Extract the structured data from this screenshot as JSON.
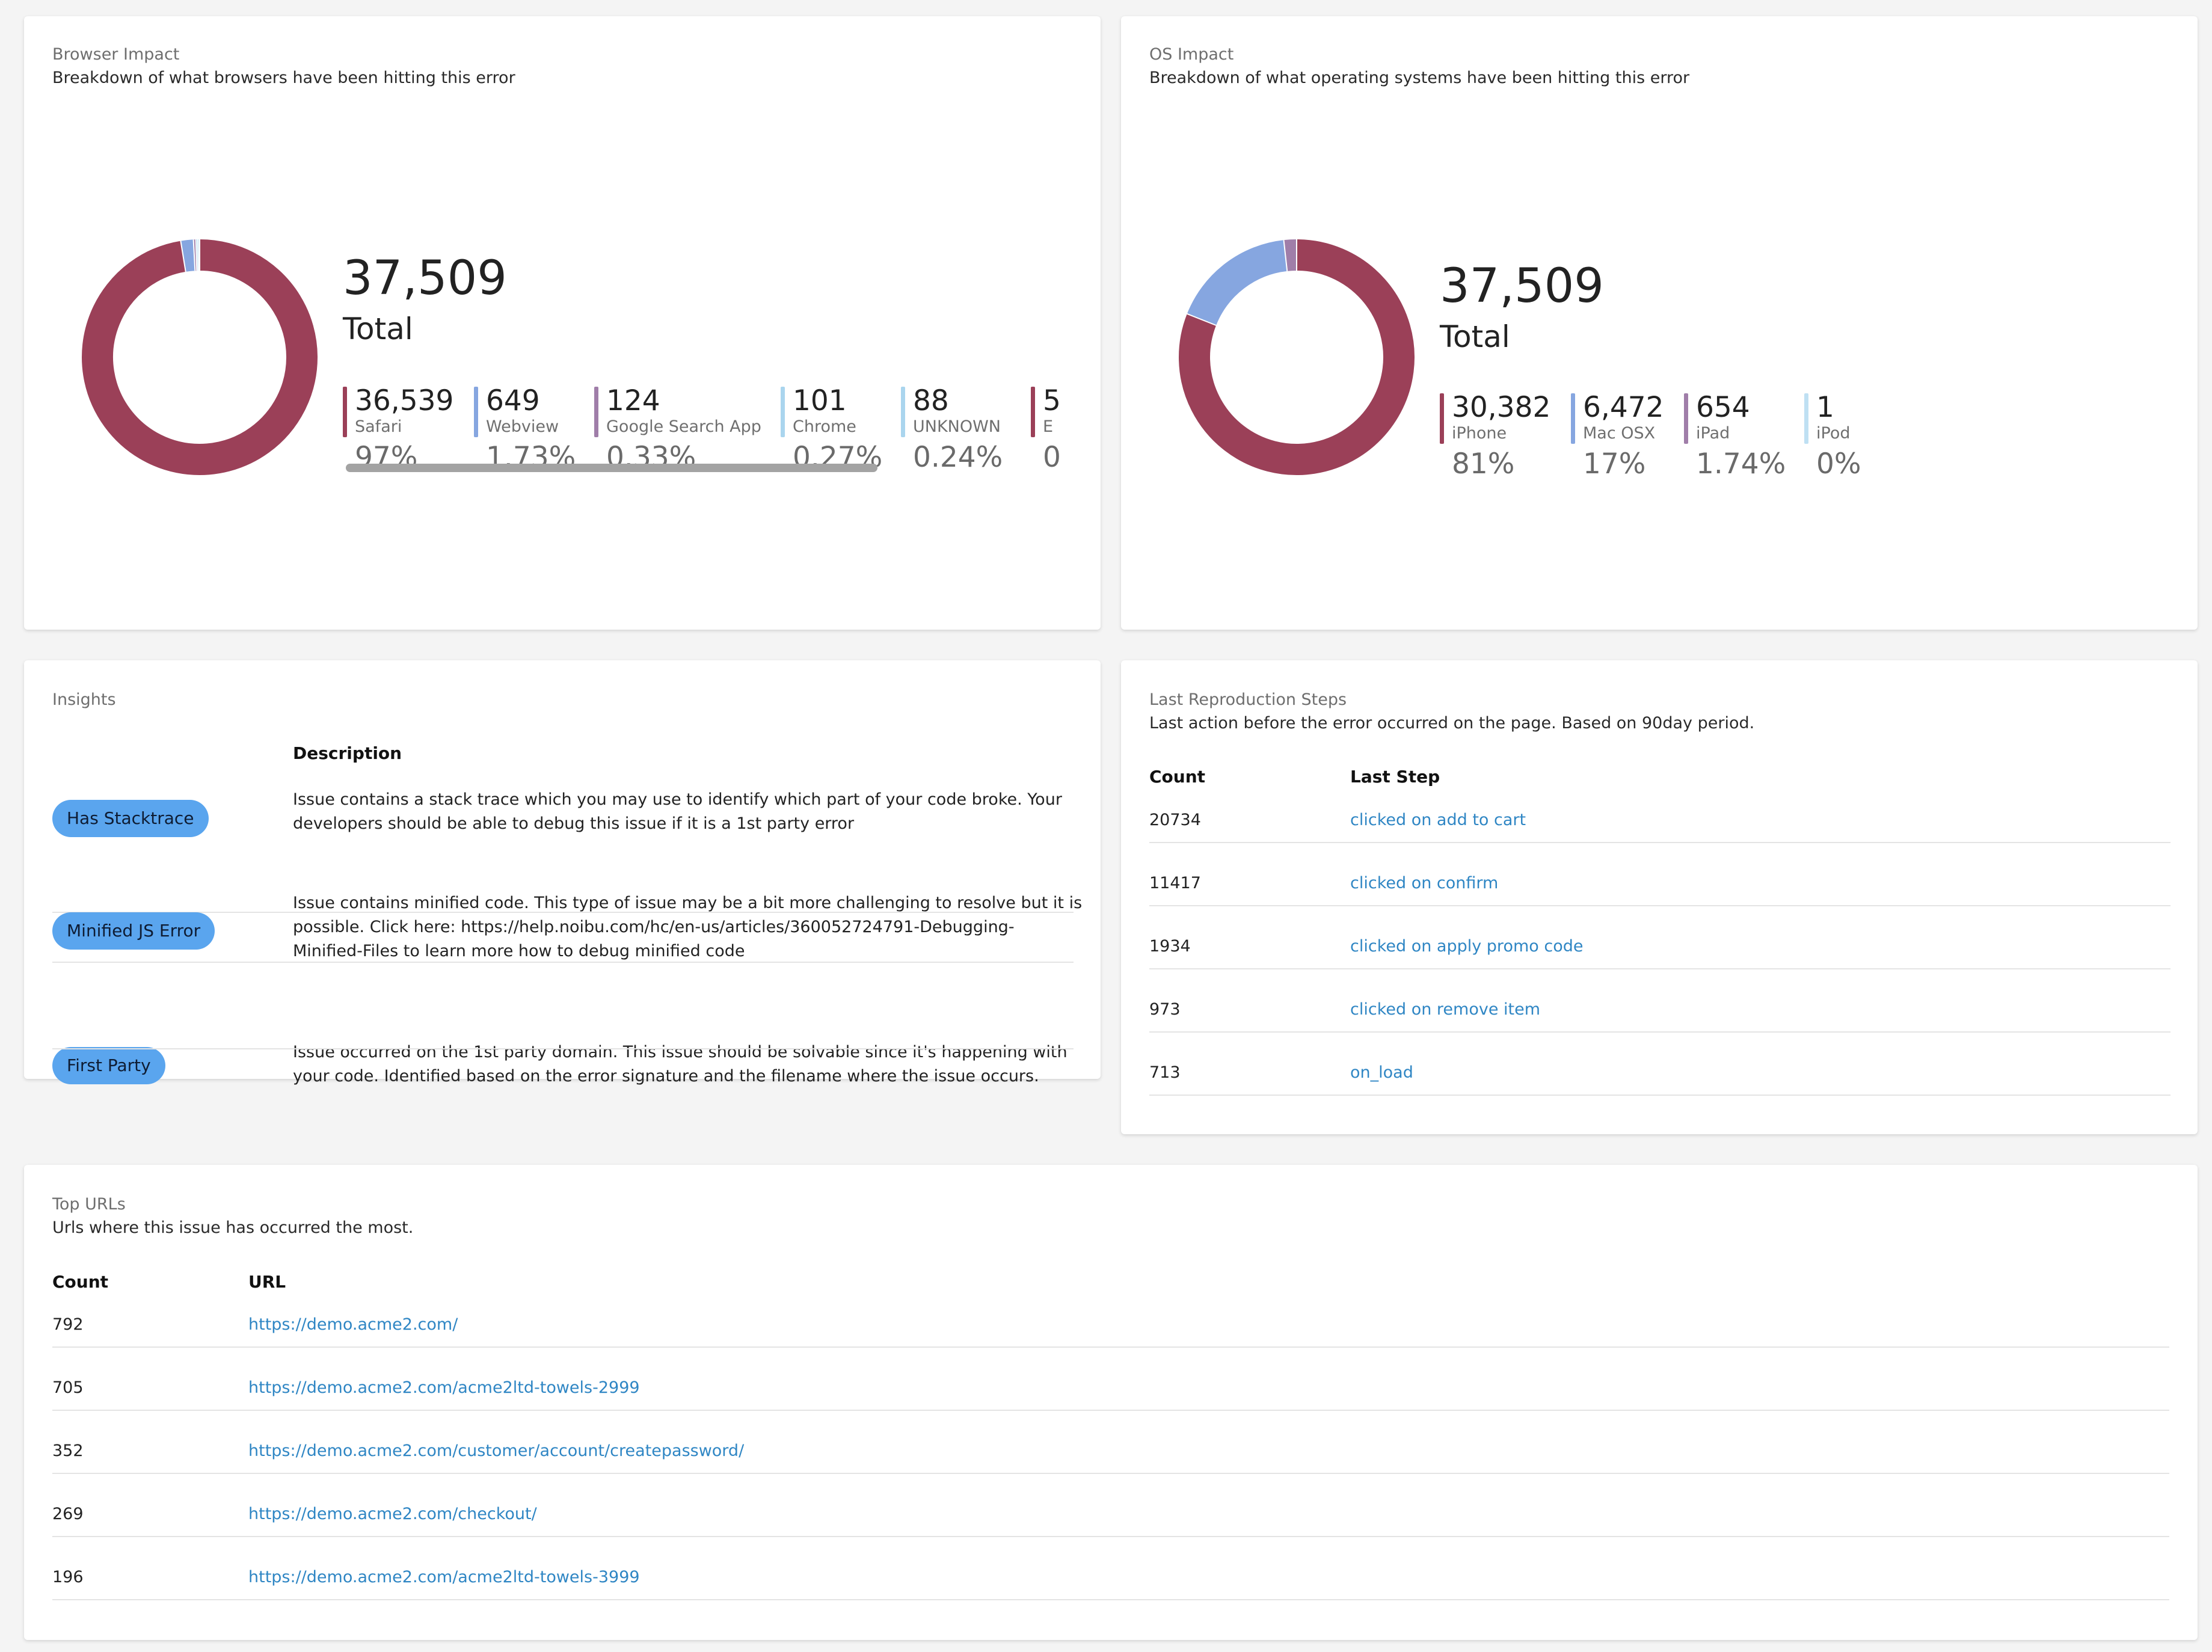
{
  "colors": {
    "maroon": "#9b4058",
    "blue": "#86a6e0",
    "purple": "#a07ea9",
    "sky": "#aad5ee",
    "ipod": "#bfe0f3",
    "link": "#2f86c4",
    "pill": "#5aa5ee"
  },
  "browser": {
    "title": "Browser Impact",
    "subtitle": "Breakdown of what browsers have been hitting this error",
    "total": "37,509",
    "total_label": "Total",
    "items": [
      {
        "count": "36,539",
        "name": "Safari",
        "pct": "97%",
        "value": 36539,
        "color": "#9b4058"
      },
      {
        "count": "649",
        "name": "Webview",
        "pct": "1.73%",
        "value": 649,
        "color": "#86a6e0"
      },
      {
        "count": "124",
        "name": "Google Search App",
        "pct": "0.33%",
        "value": 124,
        "color": "#a07ea9"
      },
      {
        "count": "101",
        "name": "Chrome",
        "pct": "0.27%",
        "value": 101,
        "color": "#aad5ee"
      },
      {
        "count": "88",
        "name": "UNKNOWN",
        "pct": "0.24%",
        "value": 88,
        "color": "#aad5ee"
      },
      {
        "count": "5",
        "name": "E",
        "pct": "0",
        "value": 5,
        "color": "#9b4058"
      }
    ]
  },
  "os": {
    "title": "OS Impact",
    "subtitle": "Breakdown of what operating systems have been hitting this error",
    "total": "37,509",
    "total_label": "Total",
    "items": [
      {
        "count": "30,382",
        "name": "iPhone",
        "pct": "81%",
        "value": 30382,
        "color": "#9b4058"
      },
      {
        "count": "6,472",
        "name": "Mac OSX",
        "pct": "17%",
        "value": 6472,
        "color": "#86a6e0"
      },
      {
        "count": "654",
        "name": "iPad",
        "pct": "1.74%",
        "value": 654,
        "color": "#a07ea9"
      },
      {
        "count": "1",
        "name": "iPod",
        "pct": "0%",
        "value": 1,
        "color": "#bfe0f3"
      }
    ]
  },
  "insights": {
    "title": "Insights",
    "desc_header": "Description",
    "rows": [
      {
        "badge": "Has Stacktrace",
        "lines": [
          "Issue contains a stack trace which you may use to identify which part of your code broke. Your",
          "developers should be able to debug this issue if it is a 1st party error"
        ]
      },
      {
        "badge": "Minified JS Error",
        "lines": [
          "Issue contains minified code. This type of issue may be a bit more challenging to resolve but it is",
          "possible. Click here: https://help.noibu.com/hc/en-us/articles/360052724791-Debugging-",
          "Minified-Files to learn more how to debug minified code"
        ]
      },
      {
        "badge": "First Party",
        "lines": [
          "Issue occurred on the 1st party domain. This issue should be solvable since it's happening with",
          "your code. Identified based on the error signature and the filename where the issue occurs."
        ]
      }
    ]
  },
  "repro": {
    "title": "Last Reproduction Steps",
    "subtitle": "Last action before the error occurred on the page. Based on 90day period.",
    "col_count": "Count",
    "col_step": "Last Step",
    "rows": [
      {
        "count": "20734",
        "step": "clicked on add to cart"
      },
      {
        "count": "11417",
        "step": "clicked on confirm"
      },
      {
        "count": "1934",
        "step": "clicked on apply promo code"
      },
      {
        "count": "973",
        "step": "clicked on remove item"
      },
      {
        "count": "713",
        "step": "on_load"
      }
    ]
  },
  "urls": {
    "title": "Top URLs",
    "subtitle": "Urls where this issue has occurred the most.",
    "col_count": "Count",
    "col_url": "URL",
    "rows": [
      {
        "count": "792",
        "url": "https://demo.acme2.com/"
      },
      {
        "count": "705",
        "url": "https://demo.acme2.com/acme2ltd-towels-2999"
      },
      {
        "count": "352",
        "url": "https://demo.acme2.com/customer/account/createpassword/"
      },
      {
        "count": "269",
        "url": "https://demo.acme2.com/checkout/"
      },
      {
        "count": "196",
        "url": "https://demo.acme2.com/acme2ltd-towels-3999"
      }
    ]
  }
}
